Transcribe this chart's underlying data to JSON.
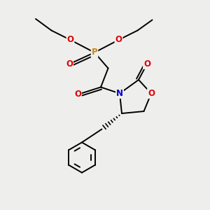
{
  "bg_color": "#eeeeed",
  "atom_colors": {
    "P": "#c8860a",
    "O": "#e00000",
    "N": "#0000cc",
    "C": "#000000"
  },
  "bond_color": "#000000",
  "bond_width": 1.4,
  "font_size_atoms": 8.5
}
